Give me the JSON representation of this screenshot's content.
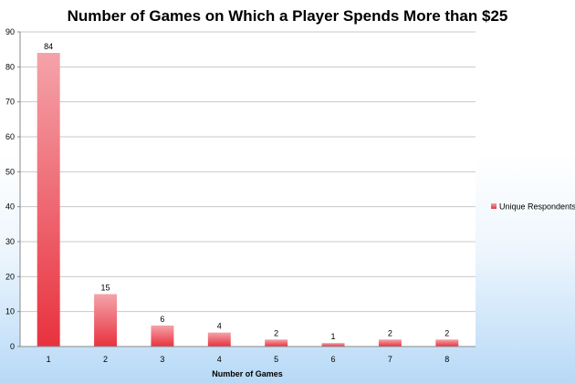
{
  "chart_data": {
    "type": "bar",
    "title": "Number of Games on Which a Player Spends More than $25",
    "xlabel": "Number of Games",
    "ylabel": "",
    "categories": [
      "1",
      "2",
      "3",
      "4",
      "5",
      "6",
      "7",
      "8"
    ],
    "series": [
      {
        "name": "Unique Respondents",
        "values": [
          84,
          15,
          6,
          4,
          2,
          1,
          2,
          2
        ],
        "color_top": "#f4a3aa",
        "color_bottom": "#e8323e"
      }
    ],
    "ylim": [
      0,
      90
    ],
    "yticks": [
      "0",
      "10",
      "20",
      "30",
      "40",
      "50",
      "60",
      "70",
      "80",
      "90"
    ],
    "data_labels": [
      "84",
      "15",
      "6",
      "4",
      "2",
      "1",
      "2",
      "2"
    ],
    "grid": true,
    "legend_position": "right",
    "colors": {
      "plot_background": "#ffffff",
      "gridline": "#c8c8c8",
      "axis": "#8a8a8a"
    }
  }
}
